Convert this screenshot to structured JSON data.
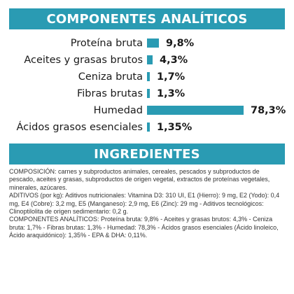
{
  "colors": {
    "accent": "#2a9bb3"
  },
  "analytics": {
    "title": "COMPONENTES ANALÍTICOS",
    "rows": [
      {
        "label": "Proteína bruta",
        "value_text": "9,8%",
        "value": 9.8
      },
      {
        "label": "Aceites y grasas brutos",
        "value_text": "4,3%",
        "value": 4.3
      },
      {
        "label": "Ceniza bruta",
        "value_text": "1,7%",
        "value": 1.7
      },
      {
        "label": "Fibras brutas",
        "value_text": "1,3%",
        "value": 1.3
      },
      {
        "label": "Humedad",
        "value_text": "78,3%",
        "value": 78.3
      },
      {
        "label": "Ácidos grasos esenciales",
        "value_text": "1,35%",
        "value": 1.35
      }
    ]
  },
  "ingredients": {
    "title": "INGREDIENTES",
    "composition": "COMPOSICIÓN: carnes y subproductos animales, cereales, pescados y subproductos de pescado, aceites y grasas, subproductos de origen vegetal, extractos de proteínas vegetales, minerales, azúcares.",
    "additives": " ADITIVOS (por kg): Aditivos nutricionales: Vitamina D3: 310 UI, E1 (Hierro): 9 mg, E2 (Yodo): 0,4 mg, E4 (Cobre): 3,2 mg, E5 (Manganeso): 2,9 mg, E6 (Zinc): 29 mg - Aditivos tecnológicos: Clinoptilolita de origen sedimentario: 0,2 g.",
    "components": " COMPONENTES ANALÍTICOS: Proteína bruta: 9,8% - Aceites y grasas brutos: 4,3% - Ceniza bruta: 1,7% - Fibras brutas: 1,3% - Humedad: 78,3% - Ácidos grasos esenciales (Ácido linoleico, Ácido araquidónico): 1,35% - EPA & DHA: 0,11%."
  }
}
